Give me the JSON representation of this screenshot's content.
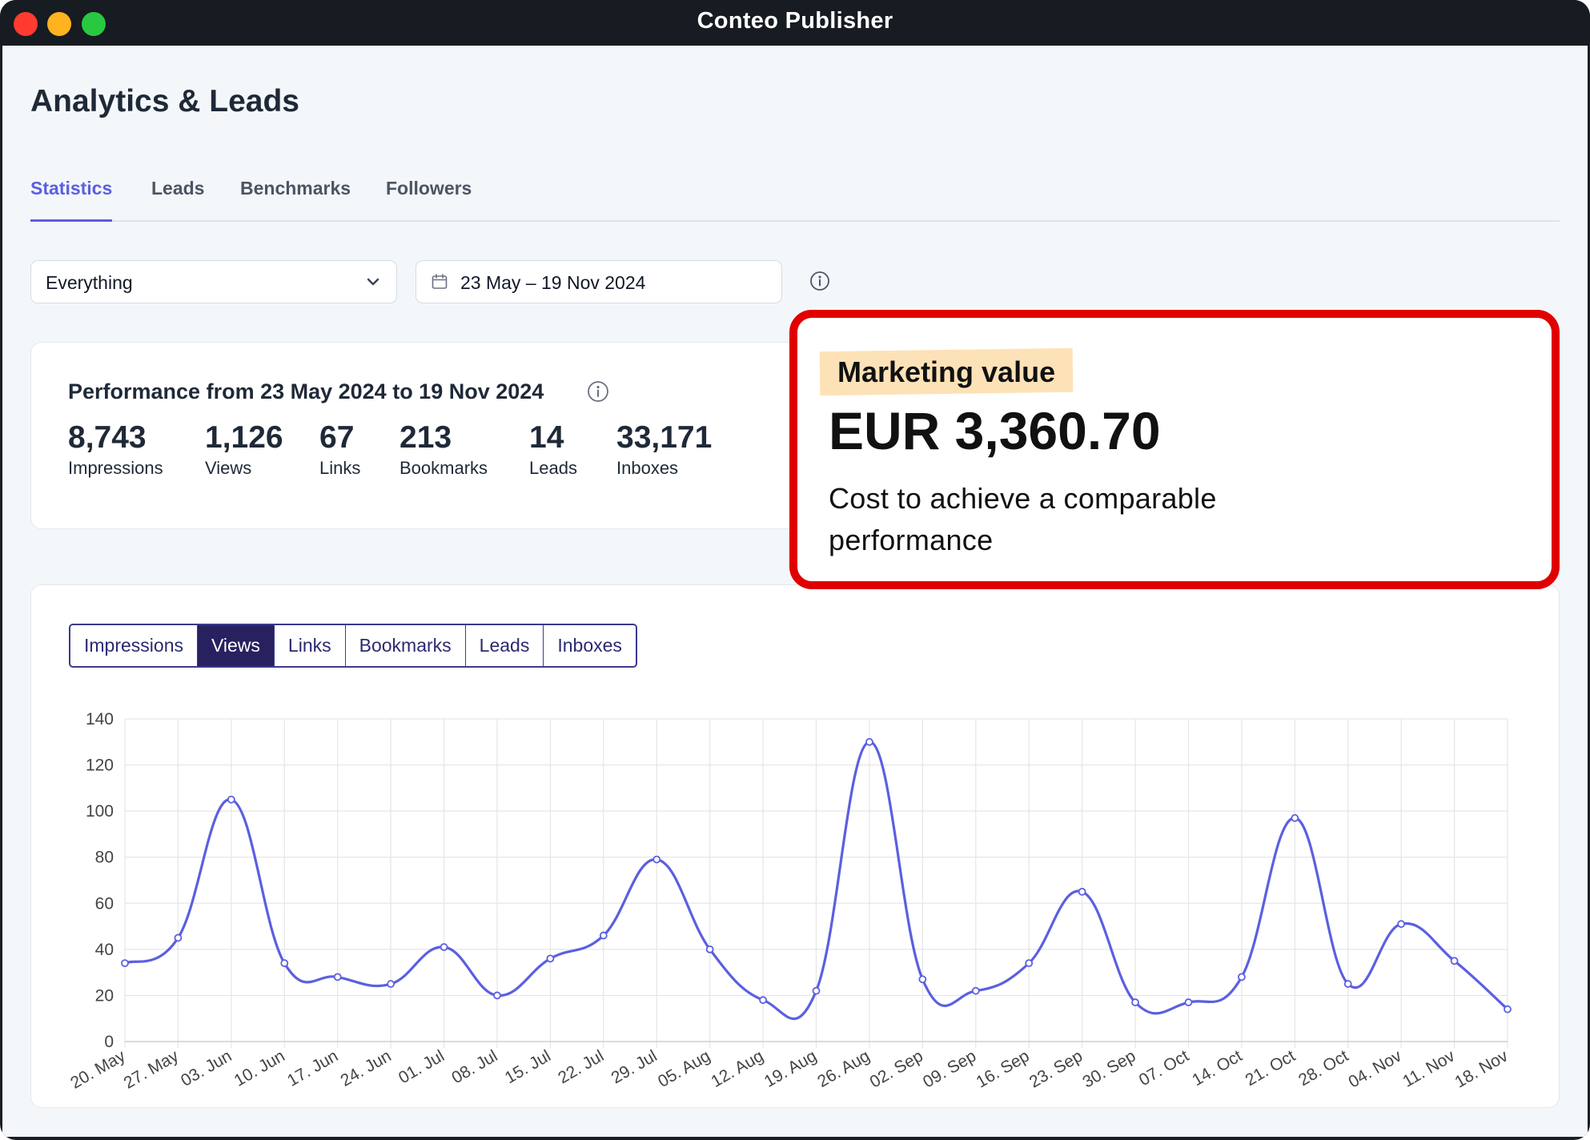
{
  "window": {
    "title": "Conteo Publisher"
  },
  "page": {
    "title": "Analytics & Leads"
  },
  "tabs": [
    {
      "label": "Statistics",
      "active": true
    },
    {
      "label": "Leads",
      "active": false
    },
    {
      "label": "Benchmarks",
      "active": false
    },
    {
      "label": "Followers",
      "active": false
    }
  ],
  "filters": {
    "content_select": "Everything",
    "date_range": "23 May – 19 Nov 2024"
  },
  "performance": {
    "title": "Performance from 23 May 2024 to 19 Nov 2024",
    "stats": [
      {
        "value": "8,743",
        "label": "Impressions"
      },
      {
        "value": "1,126",
        "label": "Views"
      },
      {
        "value": "67",
        "label": "Links"
      },
      {
        "value": "213",
        "label": "Bookmarks"
      },
      {
        "value": "14",
        "label": "Leads"
      },
      {
        "value": "33,171",
        "label": "Inboxes"
      }
    ]
  },
  "marketing_value": {
    "label": "Marketing value",
    "value": "EUR 3,360.70",
    "description": "Cost to achieve a comparable performance"
  },
  "metric_buttons": [
    {
      "label": "Impressions",
      "active": false
    },
    {
      "label": "Views",
      "active": true
    },
    {
      "label": "Links",
      "active": false
    },
    {
      "label": "Bookmarks",
      "active": false
    },
    {
      "label": "Leads",
      "active": false
    },
    {
      "label": "Inboxes",
      "active": false
    }
  ],
  "colors": {
    "accent": "#5b5fe0",
    "line": "#5b5fe0",
    "highlight_border": "#e00000",
    "highlight_label_bg": "#fde2b8",
    "active_button": "#27215f"
  },
  "chart_data": {
    "type": "line",
    "series": [
      {
        "values": [
          34,
          45,
          105,
          34,
          28,
          25,
          41,
          20,
          36,
          46,
          79,
          40,
          18,
          22,
          130,
          27,
          22,
          34,
          65,
          17,
          17,
          28,
          97,
          25,
          51,
          35,
          14
        ]
      }
    ],
    "categories": [
      "20. May",
      "27. May",
      "03. Jun",
      "10. Jun",
      "17. Jun",
      "24. Jun",
      "01. Jul",
      "08. Jul",
      "15. Jul",
      "22. Jul",
      "29. Jul",
      "05. Aug",
      "12. Aug",
      "19. Aug",
      "26. Aug",
      "02. Sep",
      "09. Sep",
      "16. Sep",
      "23. Sep",
      "30. Sep",
      "07. Oct",
      "14. Oct",
      "21. Oct",
      "28. Oct",
      "04. Nov",
      "11. Nov",
      "18. Nov"
    ],
    "yticks": [
      "0",
      "20",
      "40",
      "60",
      "80",
      "100",
      "120",
      "140"
    ],
    "ylim": [
      0,
      140
    ],
    "grid": true,
    "legend": "none"
  }
}
